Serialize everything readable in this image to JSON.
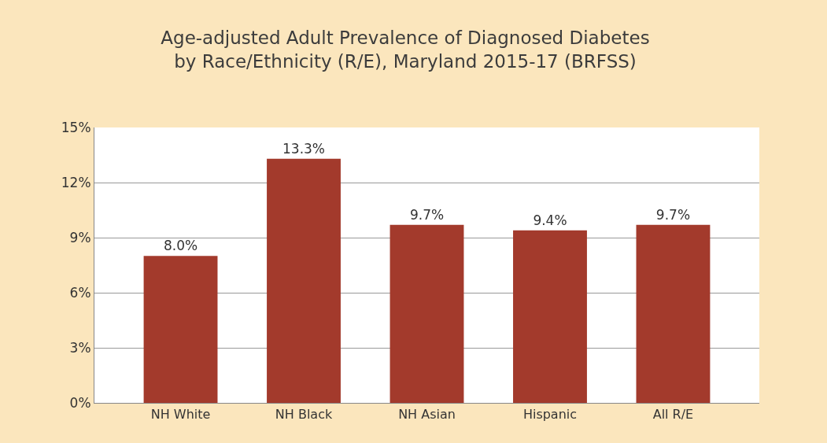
{
  "chart_data": {
    "type": "bar",
    "title": "Age-adjusted Adult Prevalence of Diagnosed Diabetes\nby Race/Ethnicity (R/E), Maryland 2015-17 (BRFSS)",
    "categories": [
      "NH White",
      "NH Black",
      "NH Asian",
      "Hispanic",
      "All R/E"
    ],
    "values": [
      8.0,
      13.3,
      9.7,
      9.4,
      9.7
    ],
    "value_labels": [
      "8.0%",
      "13.3%",
      "9.7%",
      "9.4%",
      "9.7%"
    ],
    "color": "#a33a2c",
    "ylim": [
      0,
      15
    ],
    "yticks": [
      {
        "value": 0,
        "label": "0%"
      },
      {
        "value": 3,
        "label": "3%"
      },
      {
        "value": 6,
        "label": "6%"
      },
      {
        "value": 9,
        "label": "9%"
      },
      {
        "value": 12,
        "label": "12%"
      },
      {
        "value": 15,
        "label": "15%"
      }
    ],
    "grid": "y",
    "legend": false
  }
}
